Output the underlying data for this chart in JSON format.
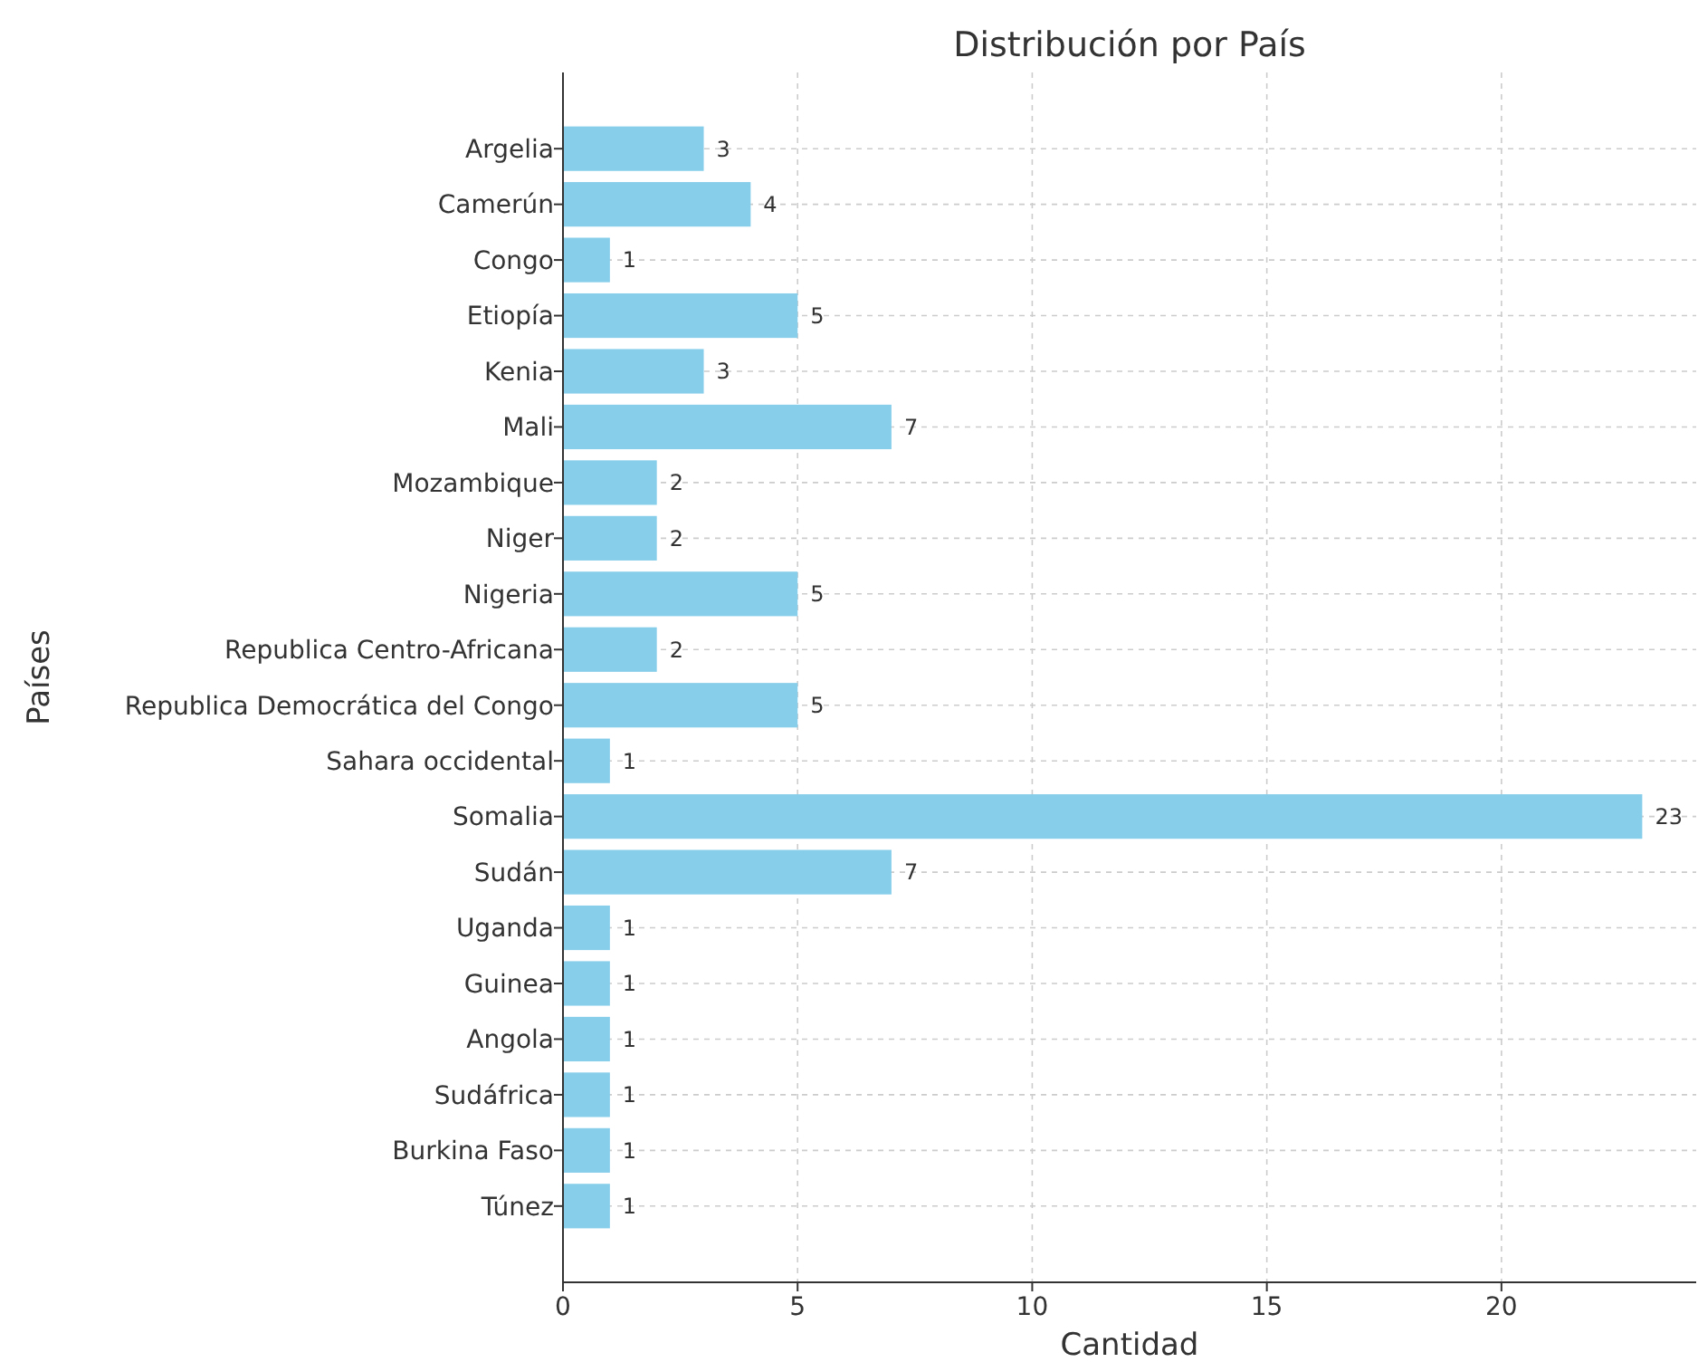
{
  "chart_data": {
    "type": "bar",
    "orientation": "horizontal",
    "title": "Distribución por País",
    "xlabel": "Cantidad",
    "ylabel": "Países",
    "categories": [
      "Argelia",
      "Camerún",
      "Congo",
      "Etiopía",
      "Kenia",
      "Mali",
      "Mozambique",
      "Niger",
      "Nigeria",
      "Republica Centro-Africana",
      "Republica Democrática del Congo",
      "Sahara occidental",
      "Somalia",
      "Sudán",
      "Uganda",
      "Guinea",
      "Angola",
      "Sudáfrica",
      "Burkina Faso",
      "Túnez"
    ],
    "values": [
      3,
      4,
      1,
      5,
      3,
      7,
      2,
      2,
      5,
      2,
      5,
      1,
      23,
      7,
      1,
      1,
      1,
      1,
      1,
      1
    ],
    "color": "#87ceeb",
    "xlim": [
      0,
      24.15
    ],
    "xticks": [
      0,
      5,
      10,
      15,
      20
    ],
    "grid": true,
    "data_labels": true
  }
}
